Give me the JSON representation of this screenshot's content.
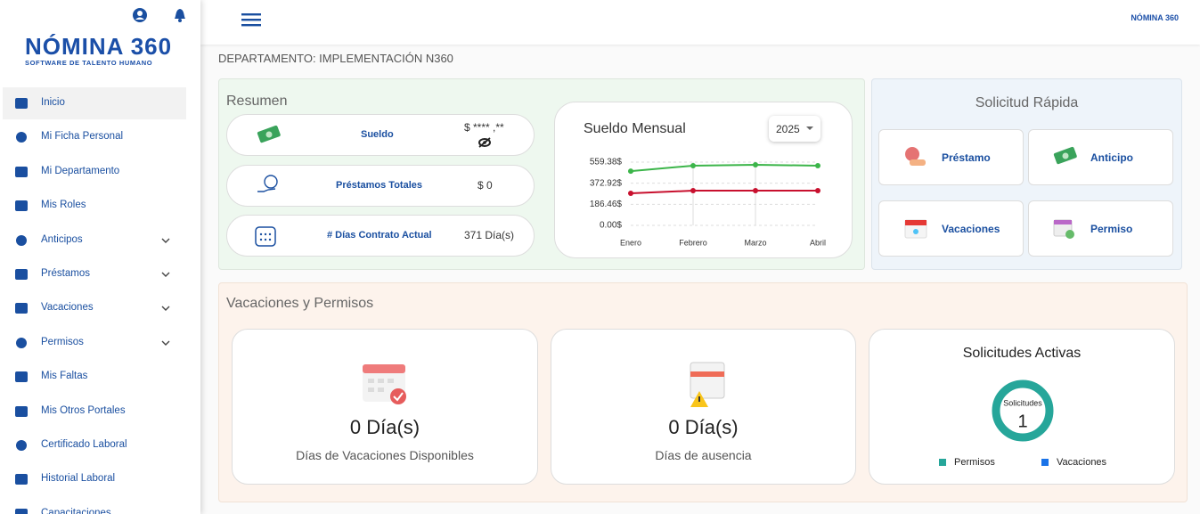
{
  "header": {
    "brand": "NÓMINA 360",
    "tagline": "SOFTWARE DE TALENTO HUMANO"
  },
  "sidebar": {
    "items": [
      {
        "label": "Inicio",
        "expandable": false,
        "active": true
      },
      {
        "label": "Mi Ficha Personal",
        "expandable": false
      },
      {
        "label": "Mi Departamento",
        "expandable": false
      },
      {
        "label": "Mis Roles",
        "expandable": false
      },
      {
        "label": "Anticipos",
        "expandable": true
      },
      {
        "label": "Préstamos",
        "expandable": true
      },
      {
        "label": "Vacaciones",
        "expandable": true
      },
      {
        "label": "Permisos",
        "expandable": true
      },
      {
        "label": "Mis Faltas",
        "expandable": false
      },
      {
        "label": "Mis Otros Portales",
        "expandable": false
      },
      {
        "label": "Certificado Laboral",
        "expandable": false
      },
      {
        "label": "Historial Laboral",
        "expandable": false
      },
      {
        "label": "Capacitaciones",
        "expandable": false
      }
    ]
  },
  "department": "DEPARTAMENTO: IMPLEMENTACIÓN N360",
  "resumen": {
    "title": "Resumen",
    "cards": [
      {
        "label": "Sueldo",
        "value": "$ **** ,**"
      },
      {
        "label": "Préstamos Totales",
        "value": "$ 0"
      },
      {
        "label": "# Días Contrato Actual",
        "value": "371 Día(s)"
      }
    ]
  },
  "quick": {
    "title": "Solicitud Rápida",
    "buttons": [
      "Préstamo",
      "Anticipo",
      "Vacaciones",
      "Permiso"
    ]
  },
  "vacaciones": {
    "title": "Vacaciones y Permisos",
    "cards": [
      {
        "value": "0 Día(s)",
        "label": "Días de Vacaciones Disponibles"
      },
      {
        "value": "0 Día(s)",
        "label": "Días de ausencia"
      }
    ]
  },
  "chart_data": [
    {
      "type": "line",
      "title": "Sueldo Mensual",
      "year": "2025",
      "categories": [
        "Enero",
        "Febrero",
        "Marzo",
        "Abril"
      ],
      "series": [
        {
          "color": "#3cb54a",
          "values": [
            480,
            528,
            536,
            528
          ]
        },
        {
          "color": "#c8102e",
          "values": [
            284,
            307,
            307,
            307
          ]
        }
      ],
      "ylim": [
        0,
        559.38
      ],
      "yticks": [
        {
          "value": 0,
          "label": "0.00$"
        },
        {
          "value": 186.46,
          "label": "186.46$"
        },
        {
          "value": 372.92,
          "label": "372.92$"
        },
        {
          "value": 559.38,
          "label": "559.38$"
        }
      ],
      "grid": true
    },
    {
      "type": "donut",
      "title": "Solicitudes Activas",
      "center_label": "Solicitudes",
      "total": 1,
      "categories": [
        "Permisos",
        "Vacaciones"
      ],
      "values": [
        1,
        0
      ],
      "colors": [
        "#26a69a",
        "#1a73e8"
      ]
    }
  ]
}
